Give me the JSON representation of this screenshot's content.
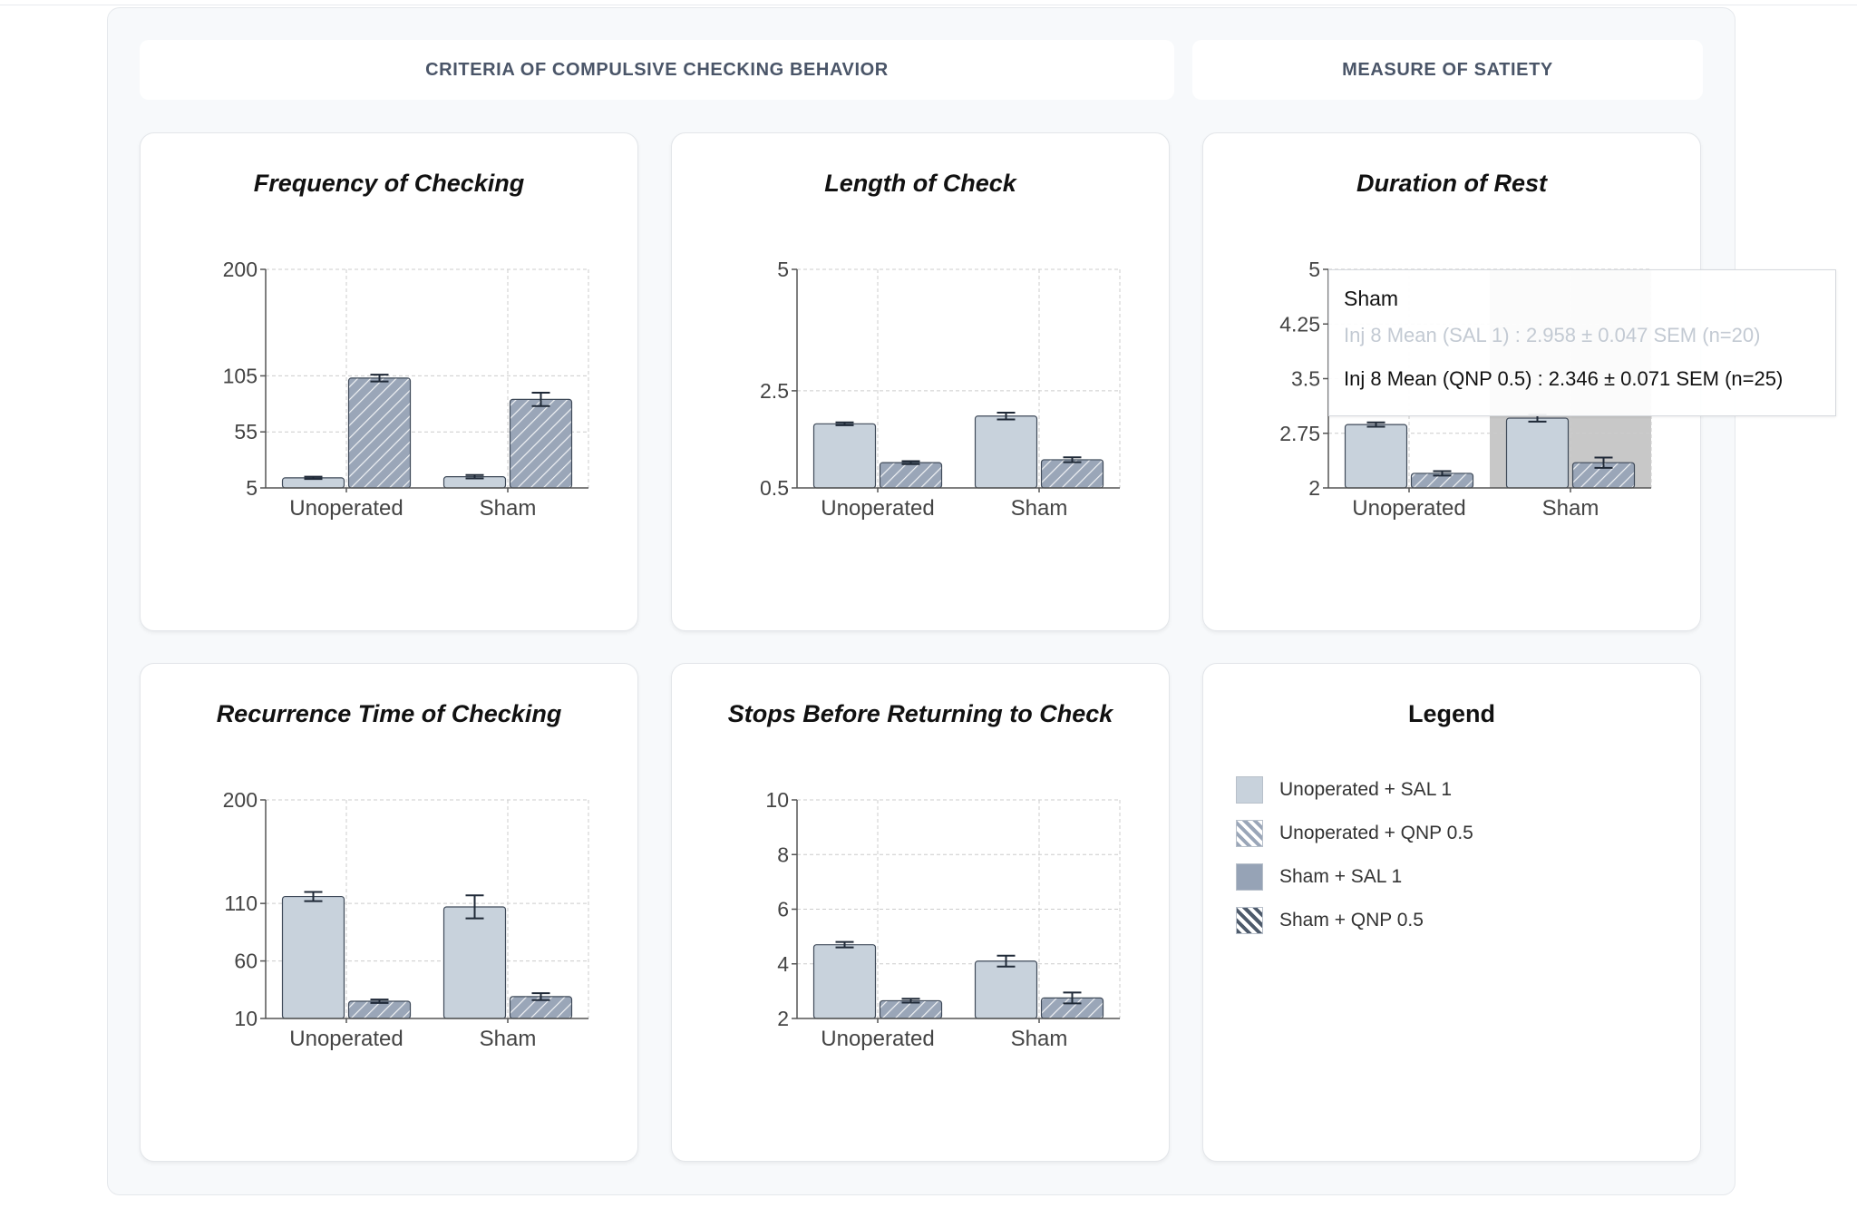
{
  "headers": {
    "criteria": "CRITERIA OF COMPULSIVE CHECKING BEHAVIOR",
    "satiety": "MEASURE OF SATIETY"
  },
  "colors": {
    "sal_fill": "#c8d2dc",
    "qnp_fill": "#9aa6b8",
    "bar_stroke": "#3f4a59",
    "error_bar": "#1f2937",
    "grid": "#cccccc",
    "hover_band": "#c8c8c8"
  },
  "chart_data": [
    {
      "id": "freq",
      "type": "bar",
      "title": "Frequency of Checking",
      "categories": [
        "Unoperated",
        "Sham"
      ],
      "yticks": [
        5,
        55,
        105,
        200
      ],
      "ylim": [
        5,
        200
      ],
      "grid": true,
      "series": [
        {
          "pattern": "solid",
          "values": [
            14,
            15
          ],
          "errors": [
            1,
            1.5
          ]
        },
        {
          "pattern": "hatched",
          "values": [
            103,
            84
          ],
          "errors": [
            3,
            6
          ]
        }
      ]
    },
    {
      "id": "length",
      "type": "bar",
      "title": "Length of Check",
      "categories": [
        "Unoperated",
        "Sham"
      ],
      "yticks": [
        0.5,
        2.5,
        5
      ],
      "ylim": [
        0.5,
        5
      ],
      "grid": true,
      "series": [
        {
          "pattern": "solid",
          "values": [
            1.82,
            1.98
          ],
          "errors": [
            0.03,
            0.07
          ]
        },
        {
          "pattern": "hatched",
          "values": [
            1.02,
            1.08
          ],
          "errors": [
            0.03,
            0.05
          ]
        }
      ]
    },
    {
      "id": "rest",
      "type": "bar",
      "title": "Duration of Rest",
      "categories": [
        "Unoperated",
        "Sham"
      ],
      "yticks": [
        2,
        2.75,
        3.5,
        4.25,
        5
      ],
      "ylim": [
        2,
        5
      ],
      "grid": true,
      "highlight_category": 1,
      "series": [
        {
          "pattern": "solid",
          "values": [
            2.87,
            2.958
          ],
          "errors": [
            0.03,
            0.047
          ]
        },
        {
          "pattern": "hatched",
          "values": [
            2.2,
            2.346
          ],
          "errors": [
            0.03,
            0.071
          ]
        }
      ]
    },
    {
      "id": "recurrence",
      "type": "bar",
      "title": "Recurrence Time of Checking",
      "categories": [
        "Unoperated",
        "Sham"
      ],
      "yticks": [
        10,
        60,
        110,
        200
      ],
      "ylim": [
        10,
        200
      ],
      "grid": true,
      "series": [
        {
          "pattern": "solid",
          "values": [
            116,
            107
          ],
          "errors": [
            4,
            10
          ]
        },
        {
          "pattern": "hatched",
          "values": [
            25,
            29
          ],
          "errors": [
            1.5,
            3
          ]
        }
      ]
    },
    {
      "id": "stops",
      "type": "bar",
      "title": "Stops Before Returning to Check",
      "categories": [
        "Unoperated",
        "Sham"
      ],
      "yticks": [
        2,
        4,
        6,
        8,
        10
      ],
      "ylim": [
        2,
        10
      ],
      "grid": true,
      "series": [
        {
          "pattern": "solid",
          "values": [
            4.7,
            4.1
          ],
          "errors": [
            0.1,
            0.2
          ]
        },
        {
          "pattern": "hatched",
          "values": [
            2.65,
            2.75
          ],
          "errors": [
            0.07,
            0.2
          ]
        }
      ]
    }
  ],
  "legend": {
    "title": "Legend",
    "items": [
      {
        "label": "Unoperated + SAL 1",
        "swatch": "uo-sal"
      },
      {
        "label": "Unoperated + QNP 0.5",
        "swatch": "uo-qnp"
      },
      {
        "label": "Sham + SAL 1",
        "swatch": "sh-sal"
      },
      {
        "label": "Sham + QNP 0.5",
        "swatch": "sh-qnp"
      }
    ]
  },
  "tooltip": {
    "title": "Sham",
    "line_sal": "Inj 8 Mean (SAL 1) : 2.958 ± 0.047 SEM (n=20)",
    "line_qnp": "Inj 8 Mean (QNP 0.5) : 2.346 ± 0.071 SEM (n=25)"
  }
}
